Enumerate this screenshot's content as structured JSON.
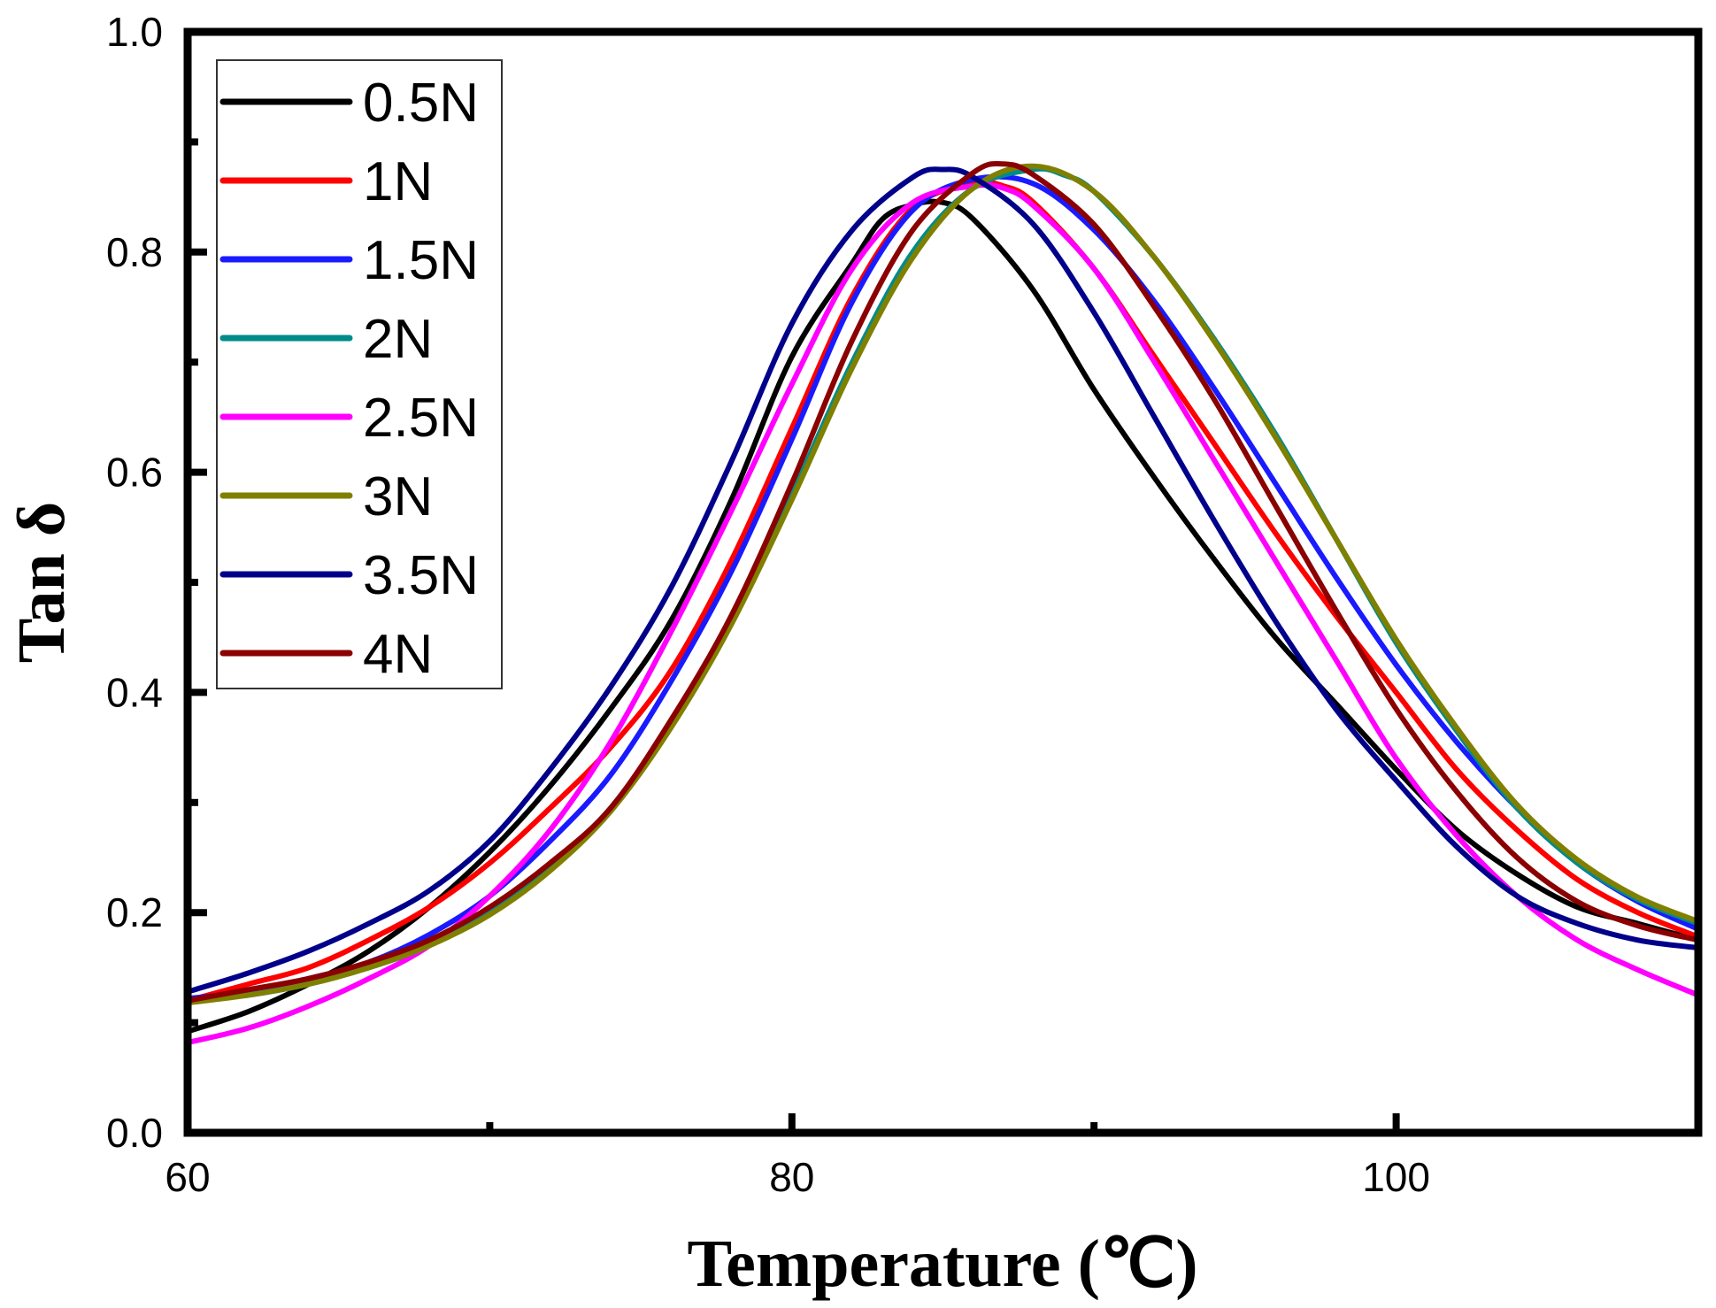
{
  "chart_data": {
    "type": "line",
    "title": "",
    "xlabel": "Temperature (℃)",
    "ylabel": "Tan δ",
    "xlim": [
      60,
      110
    ],
    "ylim": [
      0.0,
      1.0
    ],
    "xticks": [
      60,
      80,
      100
    ],
    "xtick_labels": [
      "60",
      "80",
      "100"
    ],
    "xminor": [
      70,
      90
    ],
    "yticks": [
      0.0,
      0.2,
      0.4,
      0.6,
      0.8,
      1.0
    ],
    "ytick_labels": [
      "0.0",
      "0.2",
      "0.4",
      "0.6",
      "0.8",
      "1.0"
    ],
    "yminor": [
      0.1,
      0.3,
      0.5,
      0.7,
      0.9
    ],
    "grid": false,
    "legend_position": "top-left",
    "series": [
      {
        "name": "0.5N",
        "color": "#000000",
        "x": [
          60,
          62,
          64,
          66,
          68,
          70,
          72,
          74,
          76,
          78,
          80,
          82,
          83,
          84,
          85,
          86,
          88,
          90,
          92,
          94,
          96,
          98,
          100,
          102,
          104,
          106,
          108,
          110
        ],
        "y": [
          0.092,
          0.11,
          0.135,
          0.165,
          0.205,
          0.255,
          0.315,
          0.385,
          0.465,
          0.575,
          0.705,
          0.79,
          0.83,
          0.843,
          0.845,
          0.83,
          0.765,
          0.675,
          0.595,
          0.52,
          0.45,
          0.39,
          0.33,
          0.275,
          0.235,
          0.205,
          0.19,
          0.175
        ]
      },
      {
        "name": "1N",
        "color": "#ff0000",
        "x": [
          60,
          62,
          64,
          66,
          68,
          70,
          72,
          74,
          76,
          78,
          80,
          82,
          84,
          86,
          87,
          88,
          90,
          92,
          94,
          96,
          98,
          100,
          102,
          104,
          106,
          108,
          110
        ],
        "y": [
          0.12,
          0.135,
          0.15,
          0.175,
          0.205,
          0.245,
          0.295,
          0.35,
          0.42,
          0.52,
          0.64,
          0.76,
          0.84,
          0.862,
          0.86,
          0.845,
          0.785,
          0.705,
          0.625,
          0.545,
          0.47,
          0.4,
          0.33,
          0.275,
          0.23,
          0.2,
          0.178
        ]
      },
      {
        "name": "1.5N",
        "color": "#1a1aff",
        "x": [
          60,
          62,
          64,
          66,
          68,
          70,
          72,
          74,
          76,
          78,
          80,
          82,
          84,
          86,
          88,
          90,
          92,
          94,
          96,
          98,
          100,
          102,
          104,
          106,
          108,
          110
        ],
        "y": [
          0.122,
          0.128,
          0.14,
          0.155,
          0.18,
          0.215,
          0.265,
          0.325,
          0.41,
          0.51,
          0.63,
          0.755,
          0.838,
          0.866,
          0.862,
          0.82,
          0.755,
          0.675,
          0.59,
          0.505,
          0.425,
          0.355,
          0.295,
          0.245,
          0.21,
          0.185
        ]
      },
      {
        "name": "2N",
        "color": "#008b8b",
        "x": [
          60,
          62,
          64,
          66,
          68,
          70,
          72,
          74,
          76,
          78,
          80,
          82,
          84,
          86,
          88,
          89,
          90,
          92,
          94,
          96,
          98,
          100,
          102,
          104,
          106,
          108,
          110
        ],
        "y": [
          0.12,
          0.125,
          0.135,
          0.15,
          0.17,
          0.2,
          0.24,
          0.295,
          0.37,
          0.465,
          0.58,
          0.7,
          0.8,
          0.858,
          0.875,
          0.87,
          0.855,
          0.795,
          0.72,
          0.635,
          0.54,
          0.445,
          0.365,
          0.295,
          0.245,
          0.212,
          0.19
        ]
      },
      {
        "name": "2.5N",
        "color": "#ff00ff",
        "x": [
          60,
          62,
          64,
          66,
          68,
          70,
          72,
          74,
          76,
          78,
          80,
          82,
          84,
          86,
          87,
          88,
          90,
          92,
          94,
          96,
          98,
          100,
          102,
          104,
          106,
          108,
          110
        ],
        "y": [
          0.082,
          0.095,
          0.115,
          0.14,
          0.17,
          0.215,
          0.275,
          0.355,
          0.455,
          0.565,
          0.68,
          0.785,
          0.845,
          0.86,
          0.858,
          0.842,
          0.785,
          0.7,
          0.61,
          0.52,
          0.43,
          0.34,
          0.27,
          0.215,
          0.175,
          0.148,
          0.125
        ]
      },
      {
        "name": "3N",
        "color": "#808000",
        "x": [
          60,
          62,
          64,
          66,
          68,
          70,
          72,
          74,
          76,
          78,
          80,
          82,
          84,
          86,
          88,
          90,
          92,
          94,
          96,
          98,
          100,
          102,
          104,
          106,
          108,
          110
        ],
        "y": [
          0.118,
          0.125,
          0.135,
          0.15,
          0.17,
          0.198,
          0.238,
          0.292,
          0.368,
          0.462,
          0.575,
          0.695,
          0.795,
          0.858,
          0.878,
          0.855,
          0.795,
          0.718,
          0.632,
          0.54,
          0.448,
          0.368,
          0.298,
          0.248,
          0.214,
          0.192
        ]
      },
      {
        "name": "3.5N",
        "color": "#00008b",
        "x": [
          60,
          62,
          64,
          66,
          68,
          70,
          72,
          74,
          76,
          78,
          80,
          82,
          84,
          85,
          86,
          88,
          90,
          92,
          94,
          96,
          98,
          100,
          102,
          104,
          106,
          108,
          110
        ],
        "y": [
          0.128,
          0.145,
          0.165,
          0.19,
          0.22,
          0.265,
          0.33,
          0.405,
          0.495,
          0.61,
          0.735,
          0.82,
          0.868,
          0.875,
          0.868,
          0.825,
          0.745,
          0.65,
          0.555,
          0.465,
          0.385,
          0.32,
          0.26,
          0.215,
          0.19,
          0.175,
          0.168
        ]
      },
      {
        "name": "4N",
        "color": "#8b0000",
        "x": [
          60,
          62,
          64,
          66,
          68,
          70,
          72,
          74,
          76,
          78,
          80,
          82,
          84,
          86,
          87,
          88,
          90,
          92,
          94,
          96,
          98,
          100,
          102,
          104,
          106,
          108,
          110
        ],
        "y": [
          0.12,
          0.13,
          0.14,
          0.155,
          0.175,
          0.205,
          0.245,
          0.295,
          0.375,
          0.47,
          0.59,
          0.72,
          0.82,
          0.872,
          0.88,
          0.87,
          0.825,
          0.75,
          0.665,
          0.57,
          0.475,
          0.385,
          0.31,
          0.25,
          0.21,
          0.188,
          0.175
        ]
      }
    ]
  }
}
